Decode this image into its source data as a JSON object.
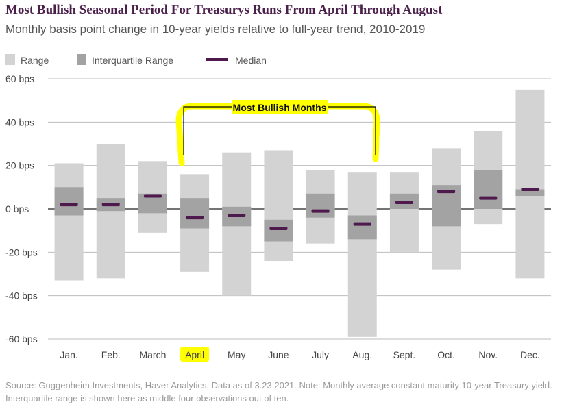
{
  "title": "Most Bullish Seasonal Period For Treasurys Runs From April Through August",
  "subtitle": "Monthly basis point change in 10-year yields relative to full-year trend, 2010-2019",
  "legend": {
    "range": "Range",
    "iqr": "Interquartile Range",
    "median": "Median"
  },
  "annotation": {
    "label": "Most Bullish Months",
    "highlight_color": "#ffff00"
  },
  "source": "Source: Guggenheim Investments, Haver Analytics. Data as of 3.23.2021. Note: Monthly average constant maturity 10-year Treasury yield. Interquartile range is shown here as middle four observations out of ten.",
  "colors": {
    "range": "#d3d3d3",
    "iqr": "#a3a3a3",
    "median": "#4e1a4e",
    "title": "#4a1f4a"
  },
  "chart_data": {
    "type": "bar",
    "categories": [
      "Jan.",
      "Feb.",
      "March",
      "April",
      "May",
      "June",
      "July",
      "Aug.",
      "Sept.",
      "Oct.",
      "Nov.",
      "Dec."
    ],
    "yticks": [
      "60 bps",
      "40 bps",
      "20 bps",
      "0 bps",
      "-20 bps",
      "-40 bps",
      "-60 bps"
    ],
    "ylim": [
      -60,
      60
    ],
    "grid": true,
    "legend_position": "top-left",
    "highlighted_categories": [
      "April",
      "May",
      "June",
      "July",
      "Aug."
    ],
    "series": [
      {
        "name": "Range",
        "low": [
          -33,
          -32,
          -11,
          -29,
          -40,
          -24,
          -16,
          -59,
          -20,
          -28,
          -7,
          -32
        ],
        "high": [
          21,
          30,
          22,
          16,
          26,
          27,
          18,
          17,
          17,
          28,
          36,
          55
        ]
      },
      {
        "name": "Interquartile Range",
        "low": [
          -3,
          -1,
          -2,
          -9,
          -8,
          -15,
          -4,
          -14,
          0,
          -8,
          0,
          6
        ],
        "high": [
          10,
          5,
          7,
          5,
          1,
          -5,
          7,
          -3,
          7,
          11,
          18,
          9
        ]
      },
      {
        "name": "Median",
        "values": [
          2,
          2,
          6,
          -4,
          -3,
          -9,
          -1,
          -7,
          3,
          8,
          5,
          9
        ]
      }
    ]
  }
}
